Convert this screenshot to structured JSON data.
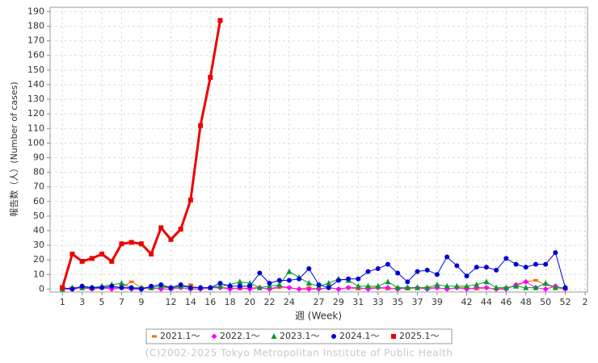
{
  "chart_data": {
    "type": "line",
    "y_label": "報告数（人）(Number of cases)",
    "x_label": "週 (Week)",
    "footer": "(C)2002-2025 Tokyo Metropolitan Institute of Public Health",
    "xlim": [
      -0.25,
      54.25
    ],
    "xticks": [
      1,
      3,
      5,
      7,
      9,
      12,
      14,
      16,
      18,
      20,
      22,
      24,
      27,
      29,
      31,
      33,
      35,
      37,
      39,
      42,
      44,
      46,
      48,
      50,
      52,
      {
        "value": 54,
        "label": "2"
      }
    ],
    "ylim": [
      -2,
      193
    ],
    "yticks": [
      0,
      10,
      20,
      30,
      40,
      50,
      60,
      70,
      80,
      90,
      100,
      110,
      120,
      130,
      140,
      150,
      160,
      170,
      180,
      190
    ],
    "grid": true,
    "legend": "bottom",
    "series": [
      {
        "name": "2021.1～",
        "color": "#ff6a00",
        "marker": "dash",
        "line_width": 1,
        "x": [
          1,
          2,
          3,
          4,
          5,
          6,
          7,
          8,
          9,
          10,
          11,
          12,
          13,
          14,
          15,
          16,
          17,
          18,
          19,
          20,
          21,
          22,
          23,
          24,
          25,
          26,
          27,
          28,
          29,
          30,
          31,
          32,
          33,
          34,
          35,
          36,
          37,
          38,
          39,
          40,
          41,
          42,
          43,
          44,
          45,
          46,
          47,
          48,
          49,
          50,
          51,
          52
        ],
        "values": [
          0,
          1,
          1,
          0,
          1,
          1,
          1,
          5,
          1,
          0,
          1,
          1,
          1,
          3,
          0,
          1,
          1,
          1,
          0,
          1,
          1,
          0,
          1,
          1,
          0,
          1,
          0,
          1,
          0,
          1,
          0,
          1,
          1,
          0,
          1,
          0,
          1,
          1,
          1,
          0,
          1,
          1,
          0,
          1,
          0,
          1,
          2,
          5,
          6,
          3,
          1,
          0
        ]
      },
      {
        "name": "2022.1～",
        "color": "#ff00ff",
        "marker": "diamond",
        "line_width": 1,
        "x": [
          1,
          2,
          3,
          4,
          5,
          6,
          7,
          8,
          9,
          10,
          11,
          12,
          13,
          14,
          15,
          16,
          17,
          18,
          19,
          20,
          21,
          22,
          23,
          24,
          25,
          26,
          27,
          28,
          29,
          30,
          31,
          32,
          33,
          34,
          35,
          36,
          37,
          38,
          39,
          40,
          41,
          42,
          43,
          44,
          45,
          46,
          47,
          48,
          49,
          50,
          51,
          52
        ],
        "values": [
          0,
          0,
          1,
          0,
          1,
          0,
          1,
          0,
          0,
          1,
          0,
          0,
          1,
          0,
          0,
          1,
          1,
          0,
          1,
          0,
          1,
          0,
          2,
          1,
          0,
          0,
          0,
          1,
          0,
          1,
          1,
          0,
          1,
          1,
          0,
          1,
          1,
          0,
          1,
          0,
          1,
          0,
          1,
          1,
          0,
          0,
          3,
          5,
          1,
          0,
          2,
          0
        ]
      },
      {
        "name": "2023.1～",
        "color": "#009933",
        "marker": "triangle",
        "line_width": 1,
        "x": [
          1,
          2,
          3,
          4,
          5,
          6,
          7,
          8,
          9,
          10,
          11,
          12,
          13,
          14,
          15,
          16,
          17,
          18,
          19,
          20,
          21,
          22,
          23,
          24,
          25,
          26,
          27,
          28,
          29,
          30,
          31,
          32,
          33,
          34,
          35,
          36,
          37,
          38,
          39,
          40,
          41,
          42,
          43,
          44,
          45,
          46,
          47,
          48,
          49,
          50,
          51,
          52
        ],
        "values": [
          0,
          1,
          1,
          1,
          2,
          3,
          4,
          1,
          1,
          1,
          2,
          1,
          2,
          1,
          1,
          1,
          2,
          3,
          5,
          4,
          1,
          2,
          3,
          12,
          8,
          4,
          2,
          4,
          7,
          6,
          2,
          2,
          2,
          5,
          1,
          1,
          1,
          1,
          3,
          2,
          2,
          2,
          3,
          5,
          1,
          1,
          2,
          1,
          1,
          4,
          1,
          1
        ]
      },
      {
        "name": "2024.1～",
        "color": "#0000dd",
        "marker": "circle",
        "line_width": 1,
        "x": [
          1,
          2,
          3,
          4,
          5,
          6,
          7,
          8,
          9,
          10,
          11,
          12,
          13,
          14,
          15,
          16,
          17,
          18,
          19,
          20,
          21,
          22,
          23,
          24,
          25,
          26,
          27,
          28,
          29,
          30,
          31,
          32,
          33,
          34,
          35,
          36,
          37,
          38,
          39,
          40,
          41,
          42,
          43,
          44,
          45,
          46,
          47,
          48,
          49,
          50,
          51,
          52
        ],
        "values": [
          1,
          0,
          2,
          1,
          1,
          2,
          1,
          1,
          0,
          2,
          3,
          1,
          3,
          1,
          1,
          1,
          4,
          2,
          2,
          2,
          11,
          4,
          6,
          6,
          7,
          14,
          3,
          1,
          6,
          7,
          7,
          12,
          14,
          17,
          11,
          5,
          12,
          13,
          10,
          22,
          16,
          9,
          15,
          15,
          13,
          21,
          17,
          15,
          17,
          17,
          25,
          1
        ]
      },
      {
        "name": "2025.1～",
        "color": "#ee0000",
        "marker": "square",
        "line_width": 3,
        "x": [
          1,
          2,
          3,
          4,
          5,
          6,
          7,
          8,
          9,
          10,
          11,
          12,
          13,
          14,
          15,
          16,
          17
        ],
        "values": [
          1,
          24,
          19,
          21,
          24,
          19,
          31,
          32,
          31,
          24,
          42,
          34,
          41,
          61,
          112,
          145,
          184
        ]
      }
    ]
  }
}
